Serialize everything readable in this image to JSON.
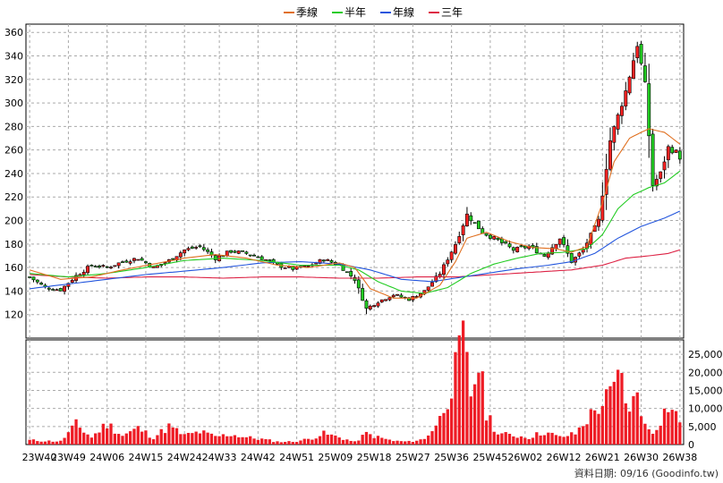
{
  "chart_data": {
    "type": "candlestick",
    "legend": [
      {
        "name": "季線",
        "color": "#e07020"
      },
      {
        "name": "半年",
        "color": "#22cc22"
      },
      {
        "name": "年線",
        "color": "#2255dd"
      },
      {
        "name": "三年",
        "color": "#dd2244"
      }
    ],
    "x_tick_labels": [
      "23W40",
      "23W49",
      "24W06",
      "24W15",
      "24W24",
      "24W33",
      "24W42",
      "24W51",
      "25W09",
      "25W18",
      "25W27",
      "25W36",
      "25W45",
      "26W02",
      "26W12",
      "26W21",
      "26W30",
      "26W38"
    ],
    "price_axis": {
      "min": 100,
      "max": 367,
      "ticks": [
        120,
        140,
        160,
        180,
        200,
        220,
        240,
        260,
        280,
        300,
        320,
        340,
        360
      ]
    },
    "volume_axis": {
      "min": 0,
      "max": 29000,
      "tick_values": [
        0,
        5000,
        10000,
        15000,
        20000,
        25000
      ],
      "tick_labels": [
        "0",
        "5,000",
        "10,000",
        "15,000",
        "20,000",
        "25,000"
      ]
    },
    "footer": "資料日期: 09/16 (Goodinfo.tw)",
    "anchors": {
      "close": [
        [
          0,
          152
        ],
        [
          4,
          143
        ],
        [
          8,
          141
        ],
        [
          12,
          153
        ],
        [
          16,
          162
        ],
        [
          20,
          160
        ],
        [
          24,
          165
        ],
        [
          28,
          168
        ],
        [
          32,
          160
        ],
        [
          36,
          166
        ],
        [
          40,
          175
        ],
        [
          44,
          178
        ],
        [
          48,
          168
        ],
        [
          52,
          174
        ],
        [
          56,
          172
        ],
        [
          60,
          168
        ],
        [
          64,
          162
        ],
        [
          68,
          159
        ],
        [
          72,
          161
        ],
        [
          76,
          167
        ],
        [
          80,
          162
        ],
        [
          84,
          150
        ],
        [
          87,
          125
        ],
        [
          90,
          131
        ],
        [
          94,
          137
        ],
        [
          98,
          133
        ],
        [
          102,
          140
        ],
        [
          106,
          155
        ],
        [
          110,
          180
        ],
        [
          113,
          205
        ],
        [
          117,
          190
        ],
        [
          121,
          183
        ],
        [
          125,
          175
        ],
        [
          129,
          178
        ],
        [
          133,
          170
        ],
        [
          137,
          185
        ],
        [
          140,
          165
        ],
        [
          143,
          175
        ],
        [
          147,
          200
        ],
        [
          150,
          268
        ],
        [
          154,
          310
        ],
        [
          157,
          350
        ],
        [
          159,
          315
        ],
        [
          161,
          230
        ],
        [
          163,
          240
        ],
        [
          165,
          262
        ],
        [
          167,
          258
        ],
        [
          168,
          254
        ]
      ],
      "volume": [
        [
          0,
          1200
        ],
        [
          4,
          1000
        ],
        [
          8,
          900
        ],
        [
          12,
          5500
        ],
        [
          16,
          2000
        ],
        [
          20,
          5800
        ],
        [
          24,
          2500
        ],
        [
          28,
          4500
        ],
        [
          32,
          2000
        ],
        [
          36,
          5000
        ],
        [
          40,
          2500
        ],
        [
          44,
          3500
        ],
        [
          48,
          2200
        ],
        [
          52,
          2800
        ],
        [
          56,
          2000
        ],
        [
          60,
          1500
        ],
        [
          64,
          800
        ],
        [
          68,
          800
        ],
        [
          72,
          1500
        ],
        [
          76,
          3000
        ],
        [
          80,
          2000
        ],
        [
          84,
          700
        ],
        [
          87,
          3000
        ],
        [
          90,
          2000
        ],
        [
          94,
          1000
        ],
        [
          98,
          800
        ],
        [
          102,
          1500
        ],
        [
          106,
          7000
        ],
        [
          110,
          20000
        ],
        [
          112,
          28500
        ],
        [
          114,
          14000
        ],
        [
          116,
          22500
        ],
        [
          118,
          9000
        ],
        [
          121,
          3000
        ],
        [
          125,
          2500
        ],
        [
          129,
          2000
        ],
        [
          133,
          3500
        ],
        [
          137,
          2000
        ],
        [
          141,
          3000
        ],
        [
          144,
          7000
        ],
        [
          147,
          10500
        ],
        [
          150,
          13500
        ],
        [
          153,
          19500
        ],
        [
          155,
          8000
        ],
        [
          157,
          16000
        ],
        [
          159,
          5000
        ],
        [
          161,
          3500
        ],
        [
          163,
          7000
        ],
        [
          165,
          11000
        ],
        [
          168,
          6500
        ]
      ],
      "sma13": [
        [
          0,
          158
        ],
        [
          8,
          150
        ],
        [
          16,
          152
        ],
        [
          24,
          158
        ],
        [
          32,
          163
        ],
        [
          40,
          168
        ],
        [
          48,
          171
        ],
        [
          56,
          168
        ],
        [
          64,
          162
        ],
        [
          72,
          160
        ],
        [
          80,
          164
        ],
        [
          84,
          160
        ],
        [
          88,
          142
        ],
        [
          94,
          134
        ],
        [
          100,
          134
        ],
        [
          106,
          145
        ],
        [
          110,
          165
        ],
        [
          113,
          185
        ],
        [
          118,
          190
        ],
        [
          124,
          182
        ],
        [
          130,
          177
        ],
        [
          136,
          176
        ],
        [
          140,
          173
        ],
        [
          144,
          178
        ],
        [
          148,
          215
        ],
        [
          151,
          250
        ],
        [
          155,
          270
        ],
        [
          158,
          275
        ],
        [
          160,
          278
        ],
        [
          164,
          275
        ],
        [
          168,
          265
        ]
      ],
      "sma26": [
        [
          0,
          155
        ],
        [
          10,
          152
        ],
        [
          20,
          155
        ],
        [
          30,
          160
        ],
        [
          40,
          166
        ],
        [
          50,
          168
        ],
        [
          60,
          166
        ],
        [
          70,
          162
        ],
        [
          80,
          162
        ],
        [
          85,
          158
        ],
        [
          90,
          148
        ],
        [
          96,
          140
        ],
        [
          102,
          138
        ],
        [
          108,
          143
        ],
        [
          114,
          155
        ],
        [
          120,
          163
        ],
        [
          126,
          168
        ],
        [
          132,
          172
        ],
        [
          138,
          173
        ],
        [
          144,
          176
        ],
        [
          148,
          188
        ],
        [
          152,
          210
        ],
        [
          156,
          222
        ],
        [
          160,
          228
        ],
        [
          164,
          232
        ],
        [
          168,
          242
        ]
      ],
      "sma52": [
        [
          0,
          142
        ],
        [
          10,
          146
        ],
        [
          20,
          150
        ],
        [
          30,
          154
        ],
        [
          40,
          157
        ],
        [
          50,
          160
        ],
        [
          60,
          164
        ],
        [
          70,
          165
        ],
        [
          80,
          163
        ],
        [
          88,
          158
        ],
        [
          96,
          150
        ],
        [
          104,
          148
        ],
        [
          110,
          151
        ],
        [
          118,
          155
        ],
        [
          126,
          159
        ],
        [
          134,
          162
        ],
        [
          140,
          165
        ],
        [
          146,
          172
        ],
        [
          152,
          185
        ],
        [
          158,
          195
        ],
        [
          164,
          202
        ],
        [
          168,
          208
        ]
      ],
      "sma156": [
        [
          0,
          154
        ],
        [
          10,
          152
        ],
        [
          20,
          151
        ],
        [
          30,
          152
        ],
        [
          40,
          152
        ],
        [
          50,
          151
        ],
        [
          60,
          152
        ],
        [
          70,
          152
        ],
        [
          80,
          151
        ],
        [
          90,
          151
        ],
        [
          100,
          152
        ],
        [
          110,
          152
        ],
        [
          120,
          154
        ],
        [
          130,
          156
        ],
        [
          140,
          158
        ],
        [
          148,
          162
        ],
        [
          154,
          168
        ],
        [
          160,
          170
        ],
        [
          165,
          172
        ],
        [
          168,
          175
        ]
      ]
    }
  }
}
